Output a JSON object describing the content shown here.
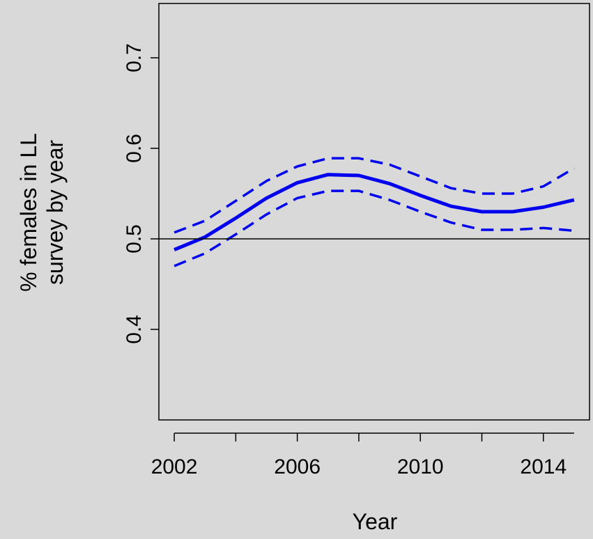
{
  "chart_data": {
    "type": "line",
    "xlabel": "Year",
    "ylabel_lines": [
      "% females in LL",
      "survey by year"
    ],
    "xlim": [
      2001.5,
      2015.5
    ],
    "ylim": [
      0.3,
      0.76
    ],
    "x_ticks": [
      2002,
      2003,
      2004,
      2005,
      2006,
      2007,
      2008,
      2009,
      2010,
      2011,
      2012,
      2013,
      2014,
      2015
    ],
    "x_tick_labels": [
      {
        "value": 2002,
        "label": "2002"
      },
      {
        "value": 2006,
        "label": "2006"
      },
      {
        "value": 2010,
        "label": "2010"
      },
      {
        "value": 2014,
        "label": "2014"
      }
    ],
    "y_ticks": [
      {
        "value": 0.4,
        "label": "0.4"
      },
      {
        "value": 0.5,
        "label": "0.5"
      },
      {
        "value": 0.6,
        "label": "0.6"
      },
      {
        "value": 0.7,
        "label": "0.7"
      }
    ],
    "reference_line": 0.5,
    "x": [
      2002,
      2003,
      2004,
      2005,
      2006,
      2007,
      2008,
      2009,
      2010,
      2011,
      2012,
      2013,
      2014,
      2015
    ],
    "series": [
      {
        "style": "solid",
        "color": "#0000ee",
        "values": [
          0.488,
          0.502,
          0.523,
          0.545,
          0.562,
          0.571,
          0.57,
          0.561,
          0.548,
          0.536,
          0.53,
          0.53,
          0.535,
          0.543
        ]
      },
      {
        "style": "dashed",
        "color": "#0000ee",
        "values": [
          0.507,
          0.52,
          0.542,
          0.564,
          0.58,
          0.589,
          0.589,
          0.582,
          0.569,
          0.556,
          0.55,
          0.55,
          0.558,
          0.578
        ]
      },
      {
        "style": "dashed",
        "color": "#0000ee",
        "values": [
          0.47,
          0.484,
          0.505,
          0.527,
          0.545,
          0.553,
          0.553,
          0.543,
          0.53,
          0.518,
          0.51,
          0.51,
          0.512,
          0.509
        ]
      }
    ],
    "grid": false,
    "legend": "none"
  }
}
